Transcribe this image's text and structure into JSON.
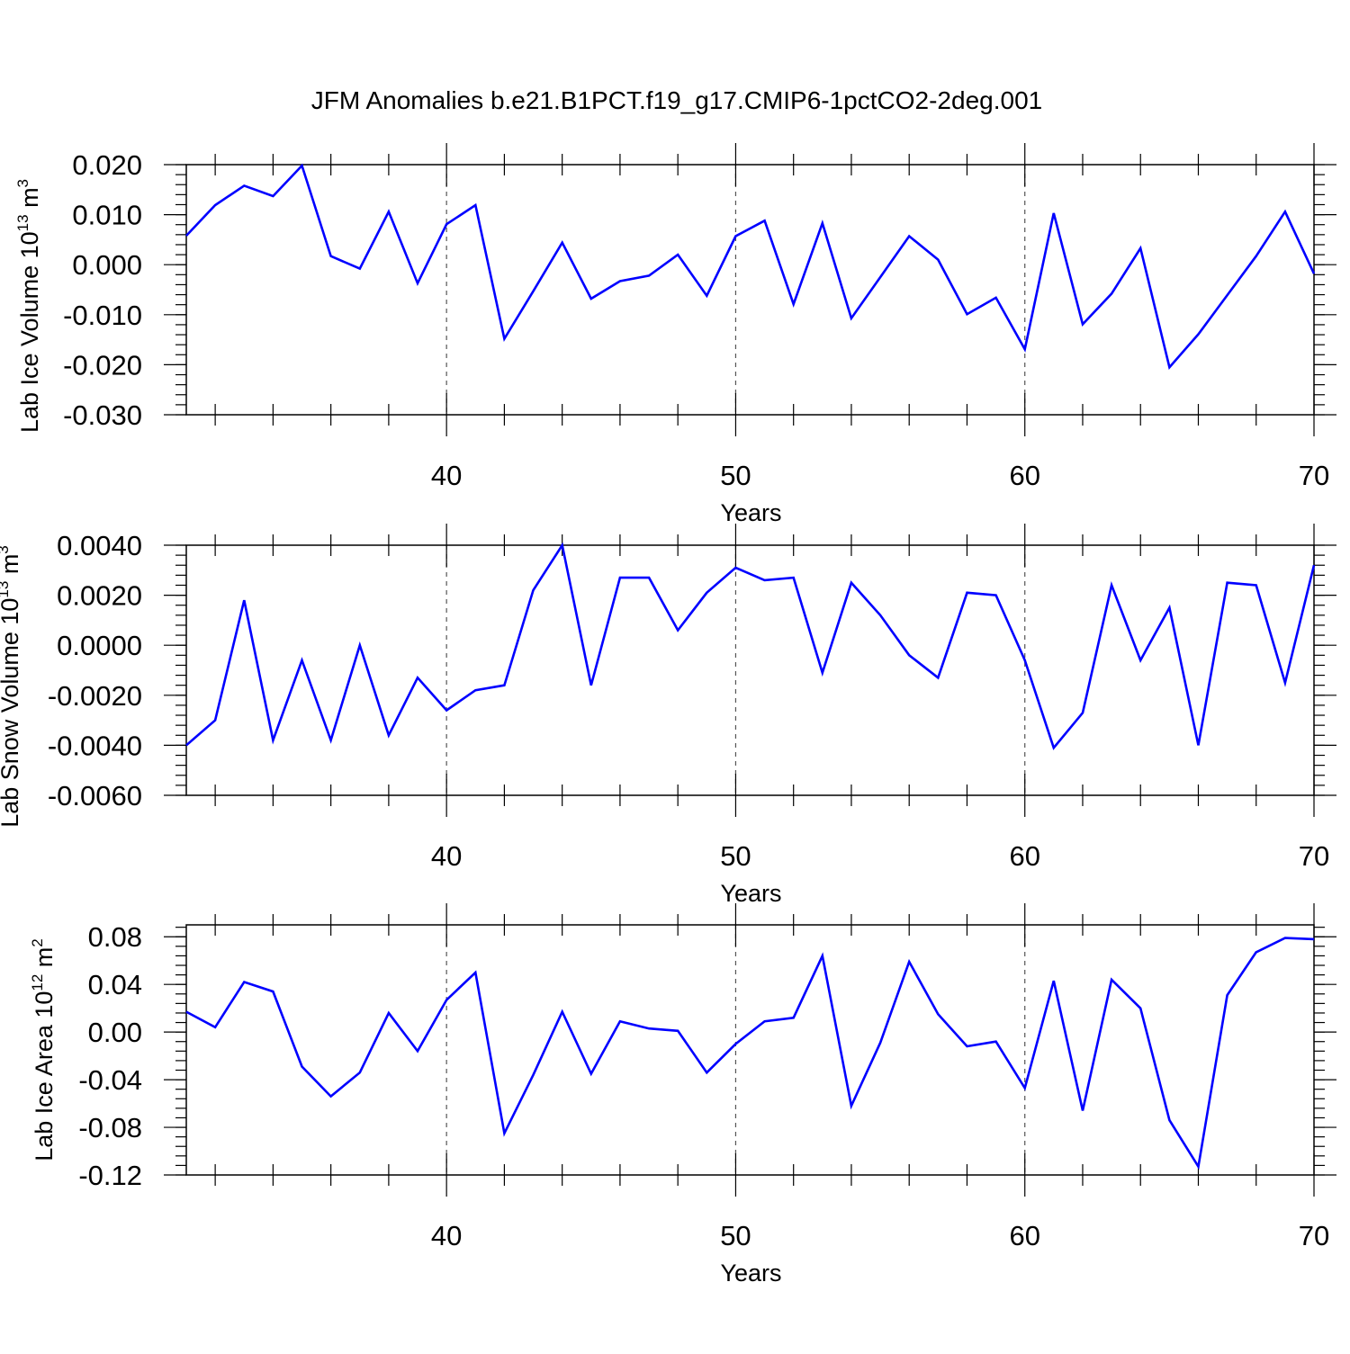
{
  "title": "JFM Anomalies b.e21.B1PCT.f19_g17.CMIP6-1pctCO2-2deg.001",
  "colors": {
    "series": "#0000ff",
    "axis": "#000000",
    "grid": "#555555"
  },
  "chart_data": [
    {
      "type": "line",
      "title": "",
      "xlabel": "Years",
      "ylabel": "Lab Ice Volume 10",
      "ylabel_exp": "13",
      "ylabel_unit": " m",
      "ylabel_unit_exp": "3",
      "xlim": [
        31,
        70
      ],
      "ylim": [
        -0.03,
        0.02
      ],
      "xticks": [
        40,
        50,
        60,
        70
      ],
      "yticks": [
        0.02,
        0.01,
        0.0,
        -0.01,
        -0.02,
        -0.03
      ],
      "ytick_labels": [
        "0.020",
        "0.010",
        "0.000",
        "-0.010",
        "-0.020",
        "-0.030"
      ],
      "grid": "dashed vertical lines at 40, 50, 60",
      "x": [
        31,
        32,
        33,
        34,
        35,
        36,
        37,
        38,
        39,
        40,
        41,
        42,
        43,
        44,
        45,
        46,
        47,
        48,
        49,
        50,
        51,
        52,
        53,
        54,
        55,
        56,
        57,
        58,
        59,
        60,
        61,
        62,
        63,
        64,
        65,
        66,
        67,
        68,
        69,
        70
      ],
      "series": [
        {
          "values": [
            0.0058,
            0.0119,
            0.0158,
            0.0137,
            0.0198,
            0.0017,
            -0.0008,
            0.0106,
            -0.0037,
            0.0081,
            0.0119,
            -0.0148,
            -0.0053,
            0.0044,
            -0.0068,
            -0.0033,
            -0.0022,
            0.002,
            -0.0062,
            0.0057,
            0.0088,
            -0.0079,
            0.0083,
            -0.0107,
            -0.0025,
            0.0057,
            0.001,
            -0.0099,
            -0.0066,
            -0.0169,
            0.0103,
            -0.0119,
            -0.0058,
            0.0033,
            -0.0205,
            -0.0139,
            -0.0061,
            0.0017,
            0.0106,
            -0.0018
          ]
        }
      ]
    },
    {
      "type": "line",
      "title": "",
      "xlabel": "Years",
      "ylabel": "Lab Snow Volume 10",
      "ylabel_exp": "13",
      "ylabel_unit": " m",
      "ylabel_unit_exp": "3",
      "xlim": [
        31,
        70
      ],
      "ylim": [
        -0.006,
        0.004
      ],
      "xticks": [
        40,
        50,
        60,
        70
      ],
      "yticks": [
        0.004,
        0.002,
        0.0,
        -0.002,
        -0.004,
        -0.006
      ],
      "ytick_labels": [
        "0.0040",
        "0.0020",
        "0.0000",
        "-0.0020",
        "-0.0040",
        "-0.0060"
      ],
      "grid": "dashed vertical lines at 40, 50, 60",
      "x": [
        31,
        32,
        33,
        34,
        35,
        36,
        37,
        38,
        39,
        40,
        41,
        42,
        43,
        44,
        45,
        46,
        47,
        48,
        49,
        50,
        51,
        52,
        53,
        54,
        55,
        56,
        57,
        58,
        59,
        60,
        61,
        62,
        63,
        64,
        65,
        66,
        67,
        68,
        69,
        70
      ],
      "series": [
        {
          "values": [
            -0.004,
            -0.003,
            0.0018,
            -0.0038,
            -0.0006,
            -0.0038,
            0.0,
            -0.0036,
            -0.0013,
            -0.0026,
            -0.0018,
            -0.0016,
            0.0022,
            0.004,
            -0.0016,
            0.0027,
            0.0027,
            0.0006,
            0.0021,
            0.0031,
            0.0026,
            0.0027,
            -0.0011,
            0.0025,
            0.0012,
            -0.0004,
            -0.0013,
            0.0021,
            0.002,
            -0.0006,
            -0.0041,
            -0.0027,
            0.0024,
            -0.0006,
            0.0015,
            -0.004,
            0.0025,
            0.0024,
            -0.0015,
            0.0032
          ]
        }
      ]
    },
    {
      "type": "line",
      "title": "",
      "xlabel": "Years",
      "ylabel": "Lab Ice Area 10",
      "ylabel_exp": "12",
      "ylabel_unit": " m",
      "ylabel_unit_exp": "2",
      "xlim": [
        31,
        70
      ],
      "ylim": [
        -0.12,
        0.09
      ],
      "xticks": [
        40,
        50,
        60,
        70
      ],
      "yticks": [
        0.08,
        0.04,
        0.0,
        -0.04,
        -0.08,
        -0.12
      ],
      "ytick_labels": [
        "0.08",
        "0.04",
        "0.00",
        "-0.04",
        "-0.08",
        "-0.12"
      ],
      "grid": "dashed vertical lines at 40, 50, 60",
      "x": [
        31,
        32,
        33,
        34,
        35,
        36,
        37,
        38,
        39,
        40,
        41,
        42,
        43,
        44,
        45,
        46,
        47,
        48,
        49,
        50,
        51,
        52,
        53,
        54,
        55,
        56,
        57,
        58,
        59,
        60,
        61,
        62,
        63,
        64,
        65,
        66,
        67,
        68,
        69,
        70
      ],
      "series": [
        {
          "values": [
            0.017,
            0.004,
            0.042,
            0.034,
            -0.029,
            -0.054,
            -0.034,
            0.016,
            -0.016,
            0.027,
            0.05,
            -0.085,
            -0.036,
            0.017,
            -0.035,
            0.009,
            0.003,
            0.001,
            -0.034,
            -0.01,
            0.009,
            0.012,
            0.064,
            -0.062,
            -0.009,
            0.059,
            0.015,
            -0.012,
            -0.008,
            -0.047,
            0.043,
            -0.066,
            0.044,
            0.02,
            -0.074,
            -0.113,
            0.031,
            0.067,
            0.079,
            0.078
          ]
        }
      ]
    }
  ]
}
